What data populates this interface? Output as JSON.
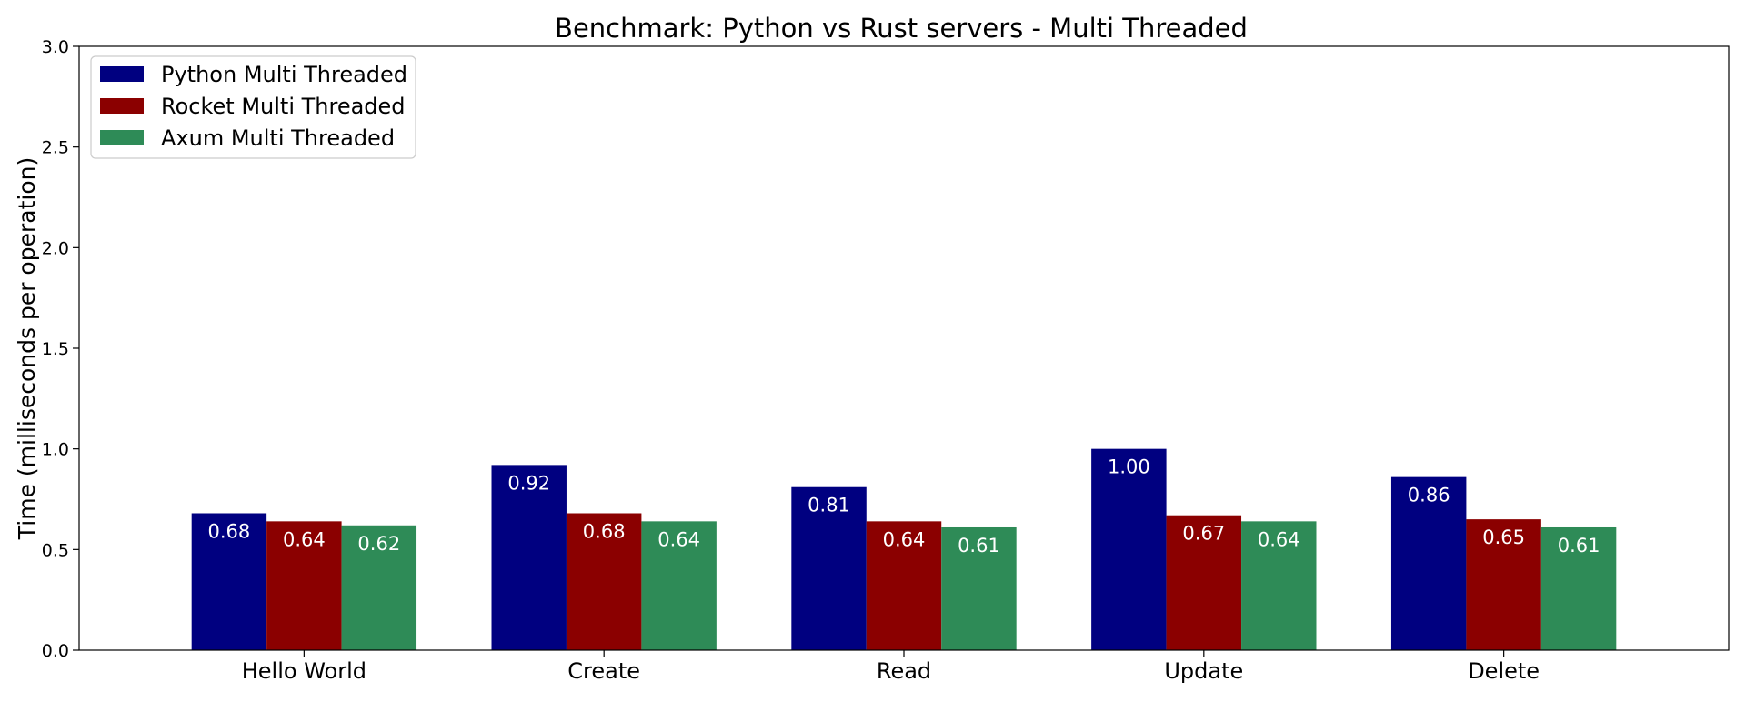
{
  "chart_data": {
    "type": "bar",
    "title": "Benchmark: Python vs Rust servers - Multi Threaded",
    "xlabel": "",
    "ylabel": "Time (milliseconds per operation)",
    "ylim": [
      0,
      3.0
    ],
    "yticks": [
      "0.0",
      "0.5",
      "1.0",
      "1.5",
      "2.0",
      "2.5",
      "3.0"
    ],
    "categories": [
      "Hello World",
      "Create",
      "Read",
      "Update",
      "Delete"
    ],
    "series": [
      {
        "name": "Python Multi Threaded",
        "color": "#000080",
        "values": [
          0.68,
          0.92,
          0.81,
          1.0,
          0.86
        ],
        "labels": [
          "0.68",
          "0.92",
          "0.81",
          "1.00",
          "0.86"
        ]
      },
      {
        "name": "Rocket Multi Threaded",
        "color": "#8b0000",
        "values": [
          0.64,
          0.68,
          0.64,
          0.67,
          0.65
        ],
        "labels": [
          "0.64",
          "0.68",
          "0.64",
          "0.67",
          "0.65"
        ]
      },
      {
        "name": "Axum Multi Threaded",
        "color": "#2e8b57",
        "values": [
          0.62,
          0.64,
          0.61,
          0.64,
          0.61
        ],
        "labels": [
          "0.62",
          "0.64",
          "0.61",
          "0.64",
          "0.61"
        ]
      }
    ],
    "grid": false,
    "legend_position": "top-left"
  }
}
